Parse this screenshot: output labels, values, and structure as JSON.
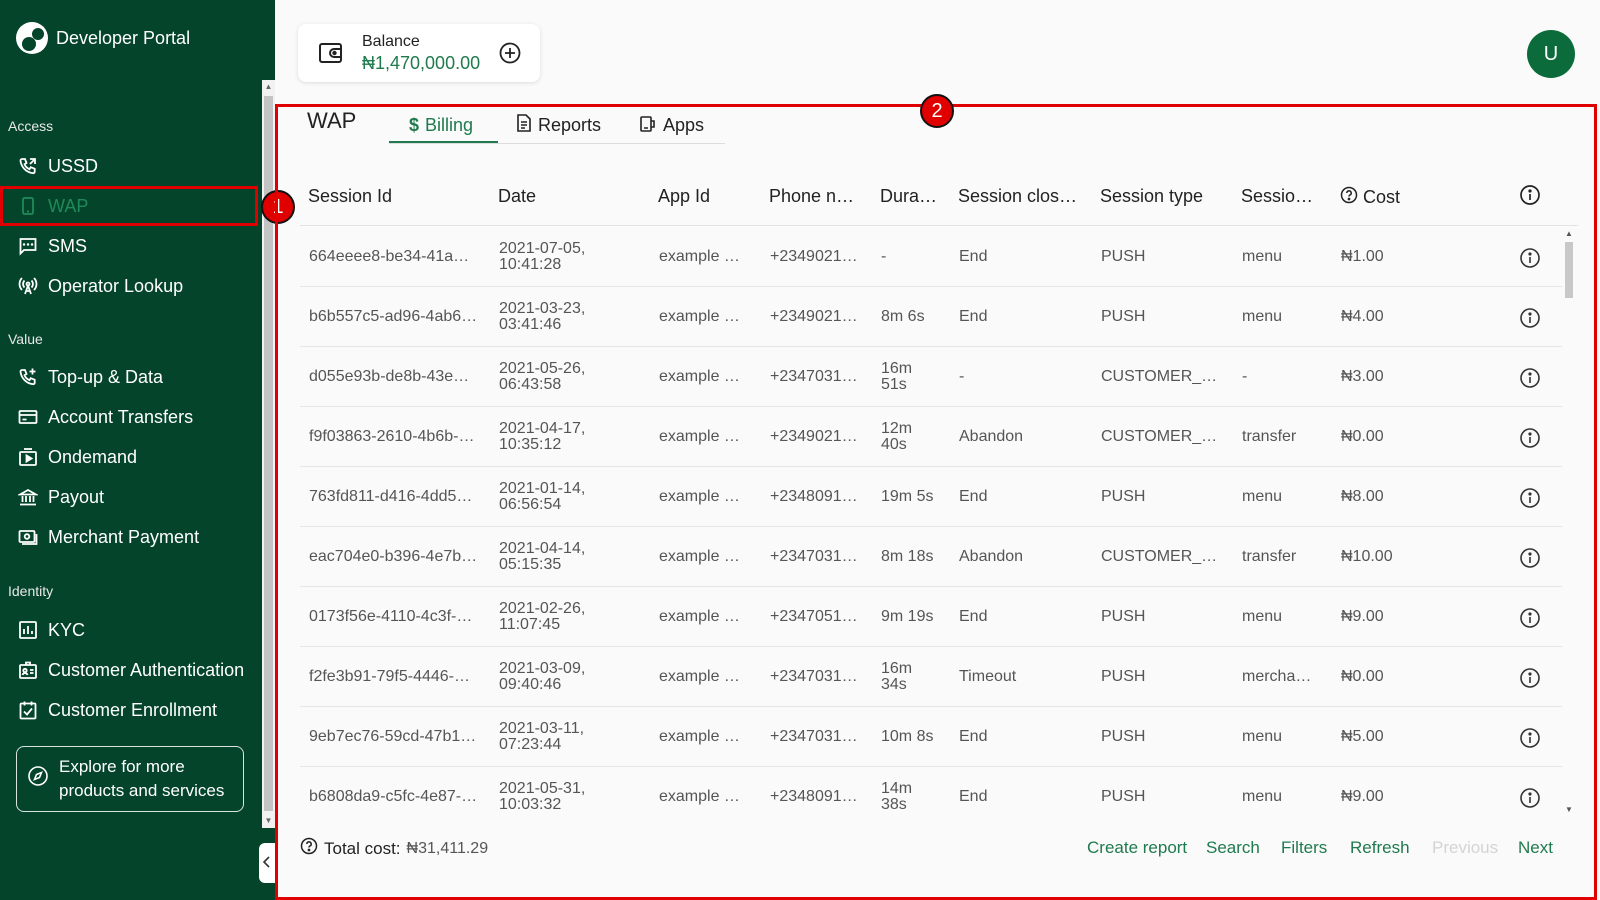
{
  "app": {
    "name": "Developer Portal"
  },
  "sidebar": {
    "sections": [
      {
        "label": "Access",
        "items": [
          {
            "label": "USSD",
            "icon": "phone-forward-icon"
          },
          {
            "label": "WAP",
            "icon": "mobile-icon",
            "active": true
          },
          {
            "label": "SMS",
            "icon": "message-icon"
          },
          {
            "label": "Operator Lookup",
            "icon": "antenna-icon"
          }
        ]
      },
      {
        "label": "Value",
        "items": [
          {
            "label": "Top-up & Data",
            "icon": "phone-plus-icon"
          },
          {
            "label": "Account Transfers",
            "icon": "card-icon"
          },
          {
            "label": "Ondemand",
            "icon": "play-box-icon"
          },
          {
            "label": "Payout",
            "icon": "bank-icon"
          },
          {
            "label": "Merchant Payment",
            "icon": "cash-register-icon"
          }
        ]
      },
      {
        "label": "Identity",
        "items": [
          {
            "label": "KYC",
            "icon": "bar-chart-icon"
          },
          {
            "label": "Customer Authentication",
            "icon": "id-card-icon"
          },
          {
            "label": "Customer Enrollment",
            "icon": "checkbox-icon"
          }
        ]
      }
    ],
    "explore": "Explore for more products and services"
  },
  "annotations": {
    "badge1": "1",
    "badge2": "2"
  },
  "header": {
    "balance_label": "Balance",
    "balance_value": "₦1,470,000.00",
    "avatar_initial": "U"
  },
  "main": {
    "title": "WAP",
    "tabs": [
      {
        "label": "Billing",
        "active": true
      },
      {
        "label": "Reports"
      },
      {
        "label": "Apps"
      }
    ],
    "columns": [
      "Session Id",
      "Date",
      "App Id",
      "Phone n…",
      "Dura…",
      "Session clos…",
      "Session type",
      "Sessio…",
      "Cost"
    ],
    "rows": [
      {
        "session_id": "664eeee8-be34-41a…",
        "date1": "2021-07-05,",
        "date2": "10:41:28",
        "app_id": "example …",
        "phone": "+2349021…",
        "dur1": "-",
        "dur2": "",
        "closed": "End",
        "type": "PUSH",
        "session": "menu",
        "cost": "₦1.00"
      },
      {
        "session_id": "b6b557c5-ad96-4ab6…",
        "date1": "2021-03-23,",
        "date2": "03:41:46",
        "app_id": "example …",
        "phone": "+2349021…",
        "dur1": "8m 6s",
        "dur2": "",
        "closed": "End",
        "type": "PUSH",
        "session": "menu",
        "cost": "₦4.00"
      },
      {
        "session_id": "d055e93b-de8b-43e…",
        "date1": "2021-05-26,",
        "date2": "06:43:58",
        "app_id": "example …",
        "phone": "+2347031…",
        "dur1": "16m",
        "dur2": "51s",
        "closed": "-",
        "type": "CUSTOMER_…",
        "session": "-",
        "cost": "₦3.00"
      },
      {
        "session_id": "f9f03863-2610-4b6b-…",
        "date1": "2021-04-17,",
        "date2": "10:35:12",
        "app_id": "example …",
        "phone": "+2349021…",
        "dur1": "12m",
        "dur2": "40s",
        "closed": "Abandon",
        "type": "CUSTOMER_…",
        "session": "transfer",
        "cost": "₦0.00"
      },
      {
        "session_id": "763fd811-d416-4dd5…",
        "date1": "2021-01-14,",
        "date2": "06:56:54",
        "app_id": "example …",
        "phone": "+2348091…",
        "dur1": "19m 5s",
        "dur2": "",
        "closed": "End",
        "type": "PUSH",
        "session": "menu",
        "cost": "₦8.00"
      },
      {
        "session_id": "eac704e0-b396-4e7b…",
        "date1": "2021-04-14,",
        "date2": "05:15:35",
        "app_id": "example …",
        "phone": "+2347031…",
        "dur1": "8m 18s",
        "dur2": "",
        "closed": "Abandon",
        "type": "CUSTOMER_…",
        "session": "transfer",
        "cost": "₦10.00"
      },
      {
        "session_id": "0173f56e-4110-4c3f-…",
        "date1": "2021-02-26,",
        "date2": "11:07:45",
        "app_id": "example …",
        "phone": "+2347051…",
        "dur1": "9m 19s",
        "dur2": "",
        "closed": "End",
        "type": "PUSH",
        "session": "menu",
        "cost": "₦9.00"
      },
      {
        "session_id": "f2fe3b91-79f5-4446-…",
        "date1": "2021-03-09,",
        "date2": "09:40:46",
        "app_id": "example …",
        "phone": "+2347031…",
        "dur1": "16m",
        "dur2": "34s",
        "closed": "Timeout",
        "type": "PUSH",
        "session": "mercha…",
        "cost": "₦0.00"
      },
      {
        "session_id": "9eb7ec76-59cd-47b1…",
        "date1": "2021-03-11,",
        "date2": "07:23:44",
        "app_id": "example …",
        "phone": "+2347031…",
        "dur1": "10m 8s",
        "dur2": "",
        "closed": "End",
        "type": "PUSH",
        "session": "menu",
        "cost": "₦5.00"
      },
      {
        "session_id": "b6808da9-c5fc-4e87-…",
        "date1": "2021-05-31,",
        "date2": "10:03:32",
        "app_id": "example …",
        "phone": "+2348091…",
        "dur1": "14m",
        "dur2": "38s",
        "closed": "End",
        "type": "PUSH",
        "session": "menu",
        "cost": "₦9.00"
      }
    ],
    "footer": {
      "total_label": "Total cost:",
      "total_value": "₦31,411.29",
      "actions": [
        "Create report",
        "Search",
        "Filters",
        "Refresh",
        "Previous",
        "Next"
      ]
    }
  },
  "colors": {
    "sidebar_bg": "#04442b",
    "accent": "#1f7a4d",
    "highlight": "#e10000"
  }
}
